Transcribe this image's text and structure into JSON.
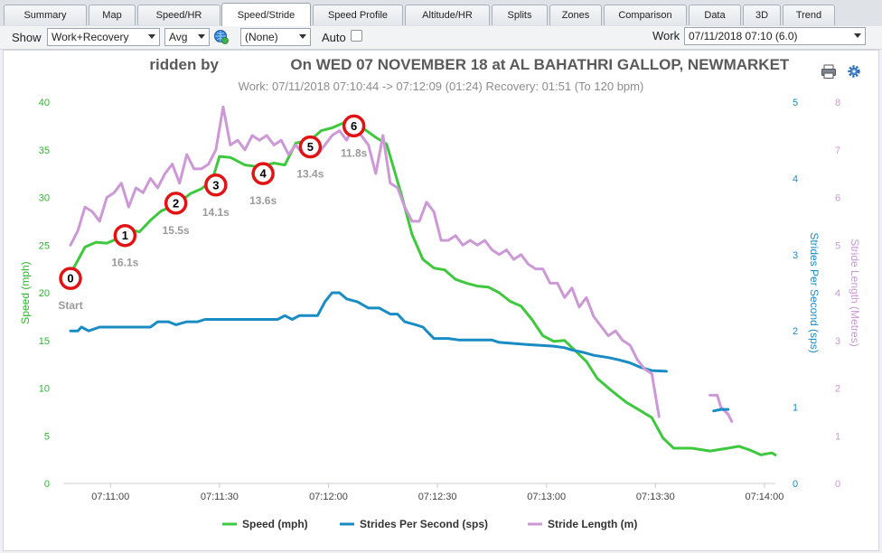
{
  "tabs": [
    {
      "label": "Summary",
      "active": false
    },
    {
      "label": "Map",
      "active": false
    },
    {
      "label": "Speed/HR",
      "active": false
    },
    {
      "label": "Speed/Stride",
      "active": true
    },
    {
      "label": "Speed Profile",
      "active": false
    },
    {
      "label": "Altitude/HR",
      "active": false
    },
    {
      "label": "Splits",
      "active": false
    },
    {
      "label": "Zones",
      "active": false
    },
    {
      "label": "Comparison",
      "active": false
    },
    {
      "label": "Data",
      "active": false
    },
    {
      "label": "3D",
      "active": false
    },
    {
      "label": "Trend",
      "active": false
    }
  ],
  "toolbar": {
    "show_label": "Show",
    "show_value": "Work+Recovery",
    "avg_value": "Avg",
    "overlay_value": "(None)",
    "auto_label": "Auto",
    "auto_checked": false,
    "work_label": "Work",
    "work_value": "07/11/2018 07:10 (6.0)"
  },
  "header": {
    "title_ridden": "ridden by",
    "title_rest": "On WED 07 NOVEMBER 18 at AL BAHATHRI GALLOP, NEWMARKET",
    "subtitle": "Work: 07/11/2018 07:10:44 -> 07:12:09 (01:24) Recovery: 01:51 (To 120 bpm)"
  },
  "icons": {
    "print": "printer-icon",
    "settings": "gear-icon",
    "refresh": "globe-refresh-icon"
  },
  "chart_data": {
    "type": "line",
    "x_ticks": [
      "07:11:00",
      "07:11:30",
      "07:12:00",
      "07:12:30",
      "07:13:00",
      "07:13:30",
      "07:14:00"
    ],
    "xlim": [
      "07:10:47",
      "07:14:03"
    ],
    "axes": {
      "left": {
        "label": "Speed (mph)",
        "min": 0,
        "max": 40,
        "ticks": [
          0,
          5,
          10,
          15,
          20,
          25,
          30,
          35,
          40
        ],
        "color": "#2db52d"
      },
      "right1": {
        "label": "Strides Per Second (sps)",
        "min": 0,
        "max": 5,
        "ticks": [
          0,
          1,
          2,
          3,
          4,
          5
        ],
        "color": "#1a8cc4"
      },
      "right2": {
        "label": "Stride Length (Metres)",
        "min": 0,
        "max": 8,
        "ticks": [
          0,
          1,
          2,
          3,
          4,
          5,
          6,
          7,
          8
        ],
        "color": "#c99ad6"
      }
    },
    "series": [
      {
        "name": "Speed (mph)",
        "axis": "left",
        "color": "#3fc83f",
        "points": [
          [
            "07:10:49",
            22
          ],
          [
            "07:10:51",
            23.4
          ],
          [
            "07:10:53",
            24.8
          ],
          [
            "07:10:56",
            25.3
          ],
          [
            "07:10:59",
            25.2
          ],
          [
            "07:11:02",
            25.7
          ],
          [
            "07:11:05",
            26.6
          ],
          [
            "07:11:08",
            26.4
          ],
          [
            "07:11:11",
            27.6
          ],
          [
            "07:11:14",
            28.6
          ],
          [
            "07:11:18",
            29.2
          ],
          [
            "07:11:22",
            30.4
          ],
          [
            "07:11:25",
            30.9
          ],
          [
            "07:11:28",
            31.8
          ],
          [
            "07:11:30",
            34.3
          ],
          [
            "07:11:33",
            34.2
          ],
          [
            "07:11:37",
            33.4
          ],
          [
            "07:11:41",
            33.2
          ],
          [
            "07:11:45",
            33.6
          ],
          [
            "07:11:48",
            33.4
          ],
          [
            "07:11:51",
            35.7
          ],
          [
            "07:11:55",
            36
          ],
          [
            "07:11:58",
            37
          ],
          [
            "07:12:01",
            37.3
          ],
          [
            "07:12:04",
            37.8
          ],
          [
            "07:12:06",
            38.3
          ],
          [
            "07:12:09",
            37.4
          ],
          [
            "07:12:13",
            36.3
          ],
          [
            "07:12:16",
            35.6
          ],
          [
            "07:12:20",
            30.4
          ],
          [
            "07:12:23",
            26.1
          ],
          [
            "07:12:26",
            23.5
          ],
          [
            "07:12:29",
            22.6
          ],
          [
            "07:12:32",
            22.4
          ],
          [
            "07:12:35",
            21.4
          ],
          [
            "07:12:38",
            21
          ],
          [
            "07:12:41",
            20.7
          ],
          [
            "07:12:44",
            20.6
          ],
          [
            "07:12:47",
            20
          ],
          [
            "07:12:50",
            19.1
          ],
          [
            "07:12:53",
            18.6
          ],
          [
            "07:12:56",
            17.2
          ],
          [
            "07:12:59",
            15.5
          ],
          [
            "07:13:02",
            14.9
          ],
          [
            "07:13:05",
            15
          ],
          [
            "07:13:08",
            13.9
          ],
          [
            "07:13:11",
            12.8
          ],
          [
            "07:13:14",
            11
          ],
          [
            "07:13:18",
            9.7
          ],
          [
            "07:13:22",
            8.5
          ],
          [
            "07:13:26",
            7.6
          ],
          [
            "07:13:29",
            6.9
          ],
          [
            "07:13:32",
            4.8
          ],
          [
            "07:13:35",
            3.7
          ],
          [
            "07:13:40",
            3.7
          ],
          [
            "07:13:45",
            3.4
          ],
          [
            "07:13:50",
            3.7
          ],
          [
            "07:13:53",
            3.9
          ],
          [
            "07:13:56",
            3.5
          ],
          [
            "07:13:59",
            3
          ],
          [
            "07:14:02",
            3.2
          ],
          [
            "07:14:03",
            3
          ]
        ]
      },
      {
        "name": "Strides Per Second (sps)",
        "axis": "right1",
        "color": "#1a8cc4",
        "points": [
          [
            "07:10:49",
            2
          ],
          [
            "07:10:51",
            2
          ],
          [
            "07:10:52",
            2.05
          ],
          [
            "07:10:54",
            2
          ],
          [
            "07:10:57",
            2.05
          ],
          [
            "07:11:11",
            2.05
          ],
          [
            "07:11:13",
            2.12
          ],
          [
            "07:11:16",
            2.12
          ],
          [
            "07:11:18",
            2.08
          ],
          [
            "07:11:21",
            2.12
          ],
          [
            "07:11:24",
            2.12
          ],
          [
            "07:11:26",
            2.15
          ],
          [
            "07:11:46",
            2.15
          ],
          [
            "07:11:48",
            2.2
          ],
          [
            "07:11:50",
            2.15
          ],
          [
            "07:11:52",
            2.2
          ],
          [
            "07:11:57",
            2.2
          ],
          [
            "07:11:59",
            2.38
          ],
          [
            "07:12:01",
            2.5
          ],
          [
            "07:12:03",
            2.5
          ],
          [
            "07:12:05",
            2.42
          ],
          [
            "07:12:08",
            2.38
          ],
          [
            "07:12:11",
            2.3
          ],
          [
            "07:12:14",
            2.3
          ],
          [
            "07:12:17",
            2.22
          ],
          [
            "07:12:19",
            2.22
          ],
          [
            "07:12:21",
            2.12
          ],
          [
            "07:12:24",
            2.08
          ],
          [
            "07:12:26",
            2.05
          ],
          [
            "07:12:29",
            1.9
          ],
          [
            "07:12:33",
            1.9
          ],
          [
            "07:12:36",
            1.88
          ],
          [
            "07:12:45",
            1.88
          ],
          [
            "07:12:47",
            1.85
          ],
          [
            "07:12:55",
            1.82
          ],
          [
            "07:13:02",
            1.8
          ],
          [
            "07:13:05",
            1.78
          ],
          [
            "07:13:07",
            1.75
          ],
          [
            "07:13:10",
            1.72
          ],
          [
            "07:13:13",
            1.68
          ],
          [
            "07:13:17",
            1.65
          ],
          [
            "07:13:20",
            1.62
          ],
          [
            "07:13:23",
            1.58
          ],
          [
            "07:13:26",
            1.52
          ],
          [
            "07:13:29",
            1.48
          ],
          [
            "07:13:33",
            1.47
          ]
        ]
      },
      {
        "name": "Stride Length (m)",
        "axis": "right2",
        "color": "#cc99d6",
        "points": [
          [
            "07:10:49",
            5
          ],
          [
            "07:10:51",
            5.3
          ],
          [
            "07:10:53",
            5.8
          ],
          [
            "07:10:55",
            5.7
          ],
          [
            "07:10:57",
            5.5
          ],
          [
            "07:10:59",
            6
          ],
          [
            "07:11:01",
            6.1
          ],
          [
            "07:11:03",
            6.3
          ],
          [
            "07:11:05",
            5.8
          ],
          [
            "07:11:07",
            6.2
          ],
          [
            "07:11:09",
            6.1
          ],
          [
            "07:11:11",
            6.4
          ],
          [
            "07:11:13",
            6.2
          ],
          [
            "07:11:15",
            6.5
          ],
          [
            "07:11:17",
            6.7
          ],
          [
            "07:11:19",
            6.3
          ],
          [
            "07:11:21",
            6.9
          ],
          [
            "07:11:23",
            6.6
          ],
          [
            "07:11:25",
            6.6
          ],
          [
            "07:11:27",
            6.7
          ],
          [
            "07:11:29",
            7
          ],
          [
            "07:11:31",
            7.9
          ],
          [
            "07:11:33",
            7.1
          ],
          [
            "07:11:35",
            7.2
          ],
          [
            "07:11:37",
            7
          ],
          [
            "07:11:39",
            7.3
          ],
          [
            "07:11:41",
            7.2
          ],
          [
            "07:11:43",
            7.3
          ],
          [
            "07:11:45",
            7.1
          ],
          [
            "07:11:47",
            7.2
          ],
          [
            "07:11:49",
            6.9
          ],
          [
            "07:11:51",
            7.1
          ],
          [
            "07:11:53",
            6.9
          ],
          [
            "07:11:55",
            7.2
          ],
          [
            "07:11:57",
            6.9
          ],
          [
            "07:11:59",
            7.1
          ],
          [
            "07:12:01",
            7.3
          ],
          [
            "07:12:03",
            7.4
          ],
          [
            "07:12:05",
            7.2
          ],
          [
            "07:12:07",
            7.5
          ],
          [
            "07:12:09",
            7.3
          ],
          [
            "07:12:11",
            7.1
          ],
          [
            "07:12:13",
            6.5
          ],
          [
            "07:12:15",
            7.3
          ],
          [
            "07:12:17",
            6.3
          ],
          [
            "07:12:19",
            6.2
          ],
          [
            "07:12:21",
            5.8
          ],
          [
            "07:12:23",
            5.5
          ],
          [
            "07:12:25",
            5.5
          ],
          [
            "07:12:27",
            5.9
          ],
          [
            "07:12:29",
            5.7
          ],
          [
            "07:12:31",
            5.1
          ],
          [
            "07:12:33",
            5.1
          ],
          [
            "07:12:35",
            5.2
          ],
          [
            "07:12:37",
            5
          ],
          [
            "07:12:39",
            5.1
          ],
          [
            "07:12:41",
            5
          ],
          [
            "07:12:43",
            5.1
          ],
          [
            "07:12:45",
            4.9
          ],
          [
            "07:12:47",
            4.8
          ],
          [
            "07:12:49",
            4.9
          ],
          [
            "07:12:51",
            4.7
          ],
          [
            "07:12:53",
            4.8
          ],
          [
            "07:12:55",
            4.6
          ],
          [
            "07:12:57",
            4.5
          ],
          [
            "07:12:59",
            4.5
          ],
          [
            "07:13:01",
            4.2
          ],
          [
            "07:13:03",
            4.2
          ],
          [
            "07:13:05",
            3.9
          ],
          [
            "07:13:07",
            4.1
          ],
          [
            "07:13:09",
            3.7
          ],
          [
            "07:13:11",
            3.9
          ],
          [
            "07:13:13",
            3.5
          ],
          [
            "07:13:15",
            3.3
          ],
          [
            "07:13:17",
            3.1
          ],
          [
            "07:13:19",
            3.2
          ],
          [
            "07:13:21",
            3
          ],
          [
            "07:13:23",
            2.9
          ],
          [
            "07:13:25",
            2.6
          ],
          [
            "07:13:27",
            2.4
          ],
          [
            "07:13:29",
            2.3
          ],
          [
            "07:13:31",
            1.4
          ]
        ]
      },
      {
        "name": "Stride Length (m) recovery tail",
        "axis": "right2",
        "color": "#cc99d6",
        "points": [
          [
            "07:13:45",
            1.85
          ],
          [
            "07:13:47",
            1.85
          ],
          [
            "07:13:48",
            1.6
          ],
          [
            "07:13:50",
            1.45
          ],
          [
            "07:13:51",
            1.3
          ]
        ]
      },
      {
        "name": "Strides Per Second (sps) recovery tail",
        "axis": "right1",
        "color": "#1a8cc4",
        "points": [
          [
            "07:13:46",
            0.95
          ],
          [
            "07:13:48",
            0.97
          ],
          [
            "07:13:50",
            0.97
          ]
        ]
      }
    ],
    "markers": [
      {
        "label": "0",
        "time": "07:10:49",
        "speed": 21.5,
        "caption": "Start"
      },
      {
        "label": "1",
        "time": "07:11:04",
        "speed": 26,
        "caption": "16.1s"
      },
      {
        "label": "2",
        "time": "07:11:18",
        "speed": 29.4,
        "caption": "15.5s"
      },
      {
        "label": "3",
        "time": "07:11:29",
        "speed": 31.3,
        "caption": "14.1s"
      },
      {
        "label": "4",
        "time": "07:11:42",
        "speed": 32.5,
        "caption": "13.6s"
      },
      {
        "label": "5",
        "time": "07:11:55",
        "speed": 35.3,
        "caption": "13.4s"
      },
      {
        "label": "6",
        "time": "07:12:07",
        "speed": 37.5,
        "caption": "11.8s"
      }
    ],
    "legend": [
      {
        "label": "Speed (mph)",
        "color": "#3fc83f"
      },
      {
        "label": "Strides Per Second (sps)",
        "color": "#1a8cc4"
      },
      {
        "label": "Stride Length (m)",
        "color": "#cc99d6"
      }
    ],
    "legend_position": "bottom-center",
    "grid": false
  }
}
